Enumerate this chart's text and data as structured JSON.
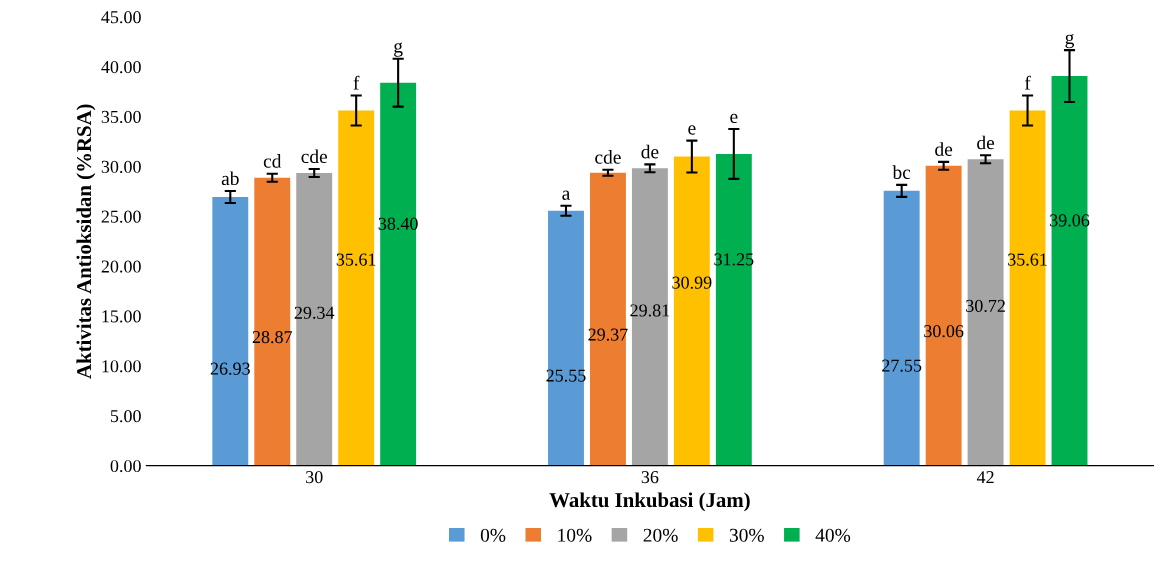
{
  "chart_data": {
    "type": "bar",
    "xlabel": "Waktu Inkubasi (Jam)",
    "ylabel": "Aktivitas Antioksidan (%RSA)",
    "categories": [
      "30",
      "36",
      "42"
    ],
    "series": [
      {
        "name": "0%",
        "color": "#5b9bd5",
        "values": [
          26.93,
          25.55,
          27.55
        ],
        "errors": [
          0.6,
          0.5,
          0.6
        ],
        "value_labels": [
          "26.93",
          "25.55",
          "27.55"
        ]
      },
      {
        "name": "10%",
        "color": "#ed7d31",
        "values": [
          28.87,
          29.37,
          30.06
        ],
        "errors": [
          0.4,
          0.3,
          0.4
        ],
        "value_labels": [
          "28.87",
          "29.37",
          "30.06"
        ]
      },
      {
        "name": "20%",
        "color": "#a5a5a5",
        "values": [
          29.34,
          29.81,
          30.72
        ],
        "errors": [
          0.4,
          0.4,
          0.4
        ],
        "value_labels": [
          "29.34",
          "29.81",
          "30.72"
        ]
      },
      {
        "name": "30%",
        "color": "#ffc000",
        "values": [
          35.61,
          30.99,
          35.61
        ],
        "errors": [
          1.5,
          1.6,
          1.5
        ],
        "value_labels": [
          "35.61",
          "30.99",
          "35.61"
        ]
      },
      {
        "name": "40%",
        "color": "#00b050",
        "values": [
          38.4,
          31.25,
          39.06
        ],
        "errors": [
          2.4,
          2.5,
          2.6
        ],
        "value_labels": [
          "38.40",
          "31.25",
          "39.06"
        ]
      }
    ],
    "annotations": [
      "ab",
      "cd",
      "cde",
      "f",
      "g",
      "a",
      "cde",
      "de",
      "e",
      "e",
      "bc",
      "de",
      "de",
      "f",
      "g"
    ],
    "ylim": [
      0,
      45
    ],
    "yticks": [
      {
        "value": 0,
        "label": "0.00"
      },
      {
        "value": 5,
        "label": "5.00"
      },
      {
        "value": 10,
        "label": "10.00"
      },
      {
        "value": 15,
        "label": "15.00"
      },
      {
        "value": 20,
        "label": "20.00"
      },
      {
        "value": 25,
        "label": "25.00"
      },
      {
        "value": 30,
        "label": "30.00"
      },
      {
        "value": 35,
        "label": "35.00"
      },
      {
        "value": 40,
        "label": "40.00"
      },
      {
        "value": 45,
        "label": "45.00"
      }
    ],
    "legend": "bottom",
    "grid": false
  }
}
